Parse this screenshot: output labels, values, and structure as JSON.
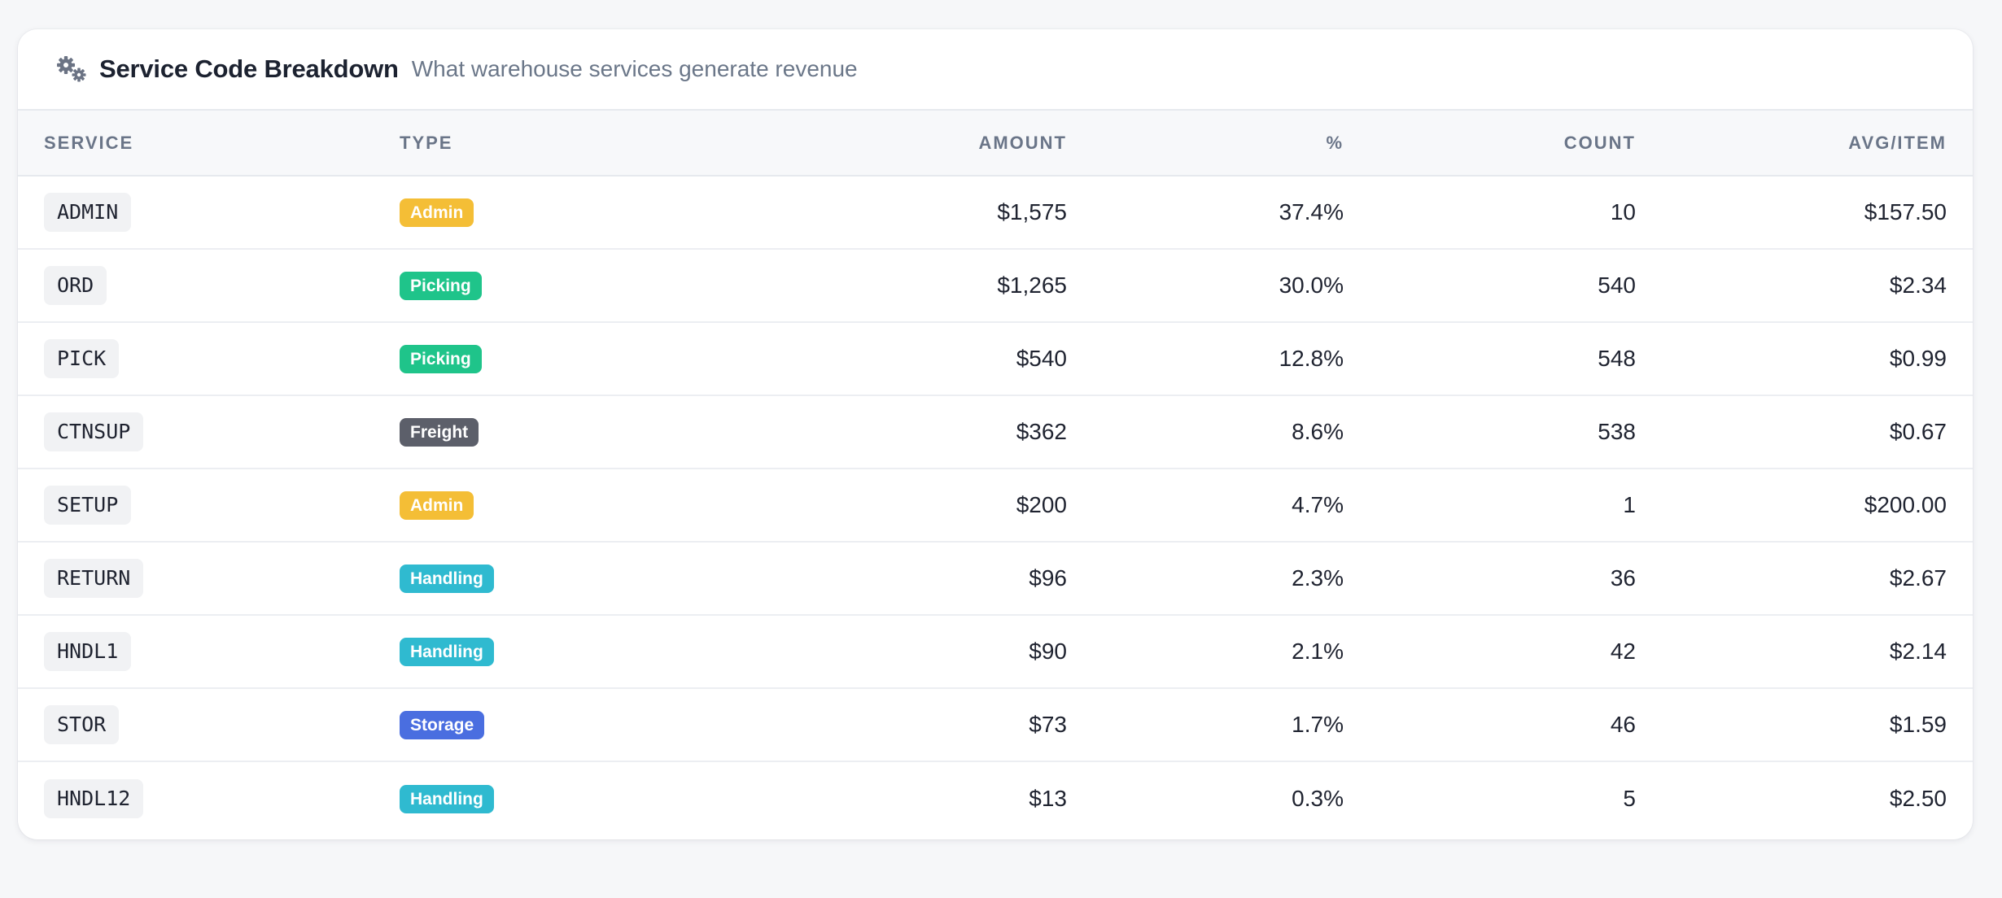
{
  "header": {
    "icon": "gears-icon",
    "title": "Service Code Breakdown",
    "subtitle": "What warehouse services generate revenue"
  },
  "columns": {
    "service": "SERVICE",
    "type": "TYPE",
    "amount": "AMOUNT",
    "pct": "%",
    "count": "COUNT",
    "avg": "AVG/ITEM"
  },
  "type_colors": {
    "Admin": "#f4be36",
    "Picking": "#1fc48a",
    "Freight": "#5c5f6a",
    "Handling": "#2fbad0",
    "Storage": "#4a6ee0"
  },
  "rows": [
    {
      "service": "ADMIN",
      "type": "Admin",
      "amount": "$1,575",
      "pct": "37.4%",
      "count": "10",
      "avg": "$157.50"
    },
    {
      "service": "ORD",
      "type": "Picking",
      "amount": "$1,265",
      "pct": "30.0%",
      "count": "540",
      "avg": "$2.34"
    },
    {
      "service": "PICK",
      "type": "Picking",
      "amount": "$540",
      "pct": "12.8%",
      "count": "548",
      "avg": "$0.99"
    },
    {
      "service": "CTNSUP",
      "type": "Freight",
      "amount": "$362",
      "pct": "8.6%",
      "count": "538",
      "avg": "$0.67"
    },
    {
      "service": "SETUP",
      "type": "Admin",
      "amount": "$200",
      "pct": "4.7%",
      "count": "1",
      "avg": "$200.00"
    },
    {
      "service": "RETURN",
      "type": "Handling",
      "amount": "$96",
      "pct": "2.3%",
      "count": "36",
      "avg": "$2.67"
    },
    {
      "service": "HNDL1",
      "type": "Handling",
      "amount": "$90",
      "pct": "2.1%",
      "count": "42",
      "avg": "$2.14"
    },
    {
      "service": "STOR",
      "type": "Storage",
      "amount": "$73",
      "pct": "1.7%",
      "count": "46",
      "avg": "$1.59"
    },
    {
      "service": "HNDL12",
      "type": "Handling",
      "amount": "$13",
      "pct": "0.3%",
      "count": "5",
      "avg": "$2.50"
    }
  ]
}
